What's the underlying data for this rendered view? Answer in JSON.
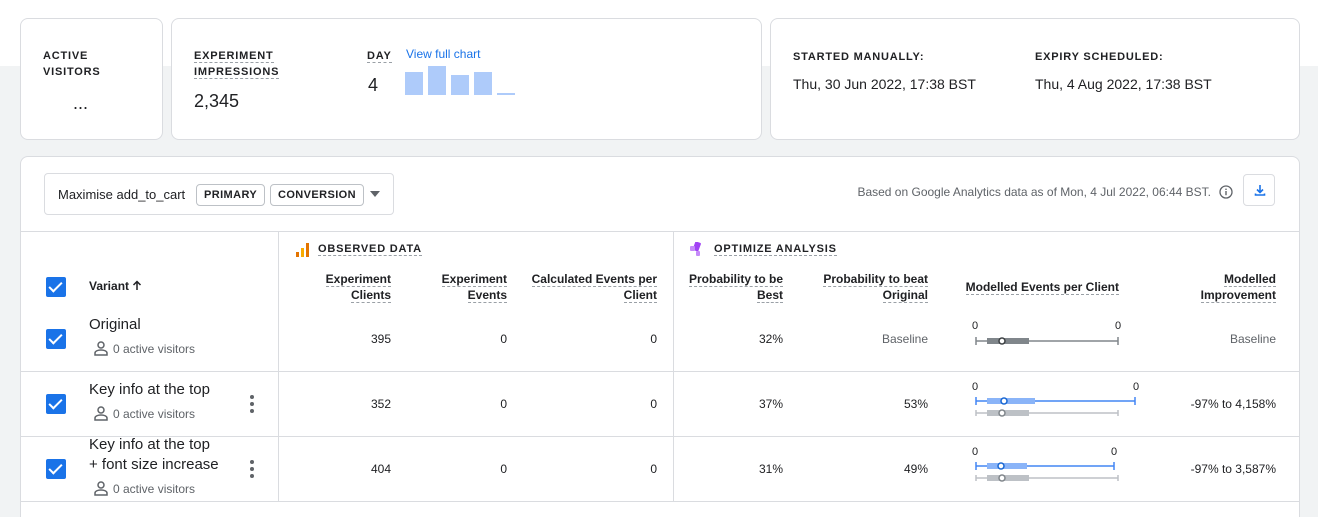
{
  "summary": {
    "active_visitors": {
      "label": "ACTIVE VISITORS",
      "value": "..."
    },
    "impressions": {
      "label": "EXPERIMENT IMPRESSIONS",
      "value": "2,345",
      "day_label": "DAY",
      "day_value": "4",
      "view_chart": "View full chart",
      "sparkline_relative": [
        0.75,
        0.95,
        0.65,
        0.75,
        0.05
      ]
    },
    "dates": {
      "started_label": "STARTED MANUALLY:",
      "started_value": "Thu, 30 Jun 2022, 17:38 BST",
      "expiry_label": "EXPIRY SCHEDULED:",
      "expiry_value": "Thu, 4 Aug 2022, 17:38 BST"
    }
  },
  "objective": {
    "name": "Maximise add_to_cart",
    "tag_primary": "PRIMARY",
    "tag_type": "CONVERSION",
    "based_on": "Based on Google Analytics data as of Mon, 4 Jul 2022, 06:44 BST."
  },
  "table": {
    "variant_header": "Variant",
    "observed_label": "OBSERVED DATA",
    "optimize_label": "OPTIMIZE ANALYSIS",
    "headers": {
      "exp_clients_1": "Experiment",
      "exp_clients_2": "Clients",
      "exp_events_1": "Experiment",
      "exp_events_2": "Events",
      "calc_events_1": "Calculated Events per",
      "calc_events_2": "Client",
      "prob_best_1": "Probability to be",
      "prob_best_2": "Best",
      "prob_beat_1": "Probability to beat",
      "prob_beat_2": "Original",
      "modelled_epc": "Modelled Events per Client",
      "modelled_imp_1": "Modelled",
      "modelled_imp_2": "Improvement"
    },
    "rows": [
      {
        "name_1": "Original",
        "name_2": "",
        "visitors": "0 active visitors",
        "clients": "395",
        "events": "0",
        "calc": "0",
        "prob_best": "32%",
        "prob_beat": "Baseline",
        "axis_left": "0",
        "axis_right": "0",
        "improvement": "Baseline"
      },
      {
        "name_1": "Key info at the top",
        "name_2": "",
        "visitors": "0 active visitors",
        "clients": "352",
        "events": "0",
        "calc": "0",
        "prob_best": "37%",
        "prob_beat": "53%",
        "axis_left": "0",
        "axis_right": "0",
        "improvement": "-97% to 4,158%"
      },
      {
        "name_1": "Key info at the top",
        "name_2": "+ font size increase",
        "visitors": "0 active visitors",
        "clients": "404",
        "events": "0",
        "calc": "0",
        "prob_best": "31%",
        "prob_beat": "49%",
        "axis_left": "0",
        "axis_right": "0",
        "improvement": "-97% to 3,587%"
      }
    ]
  },
  "colors": {
    "accent": "#1a73e8",
    "border": "#dadce0",
    "bar": "#aecbfa"
  }
}
